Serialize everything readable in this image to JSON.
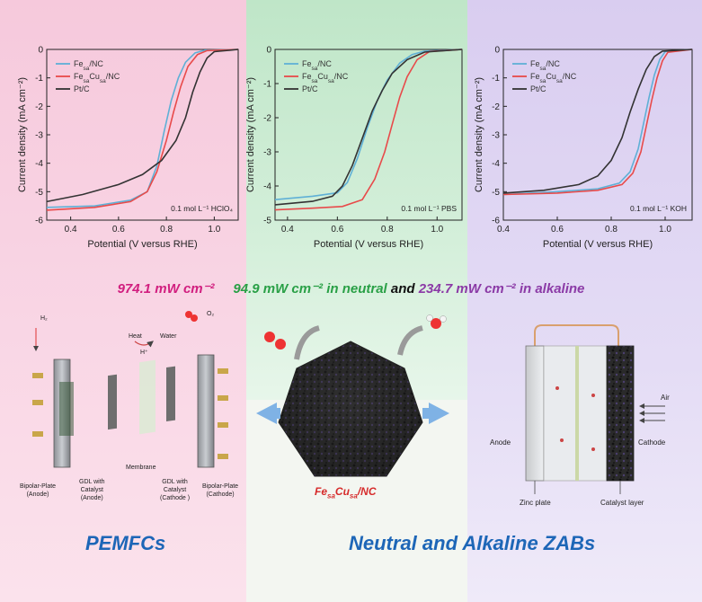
{
  "chart_data": [
    {
      "type": "line",
      "xlabel": "Potential (V versus RHE)",
      "ylabel": "Current density (mA cm⁻²)",
      "annotation": "0.1 mol L⁻¹ HClO₄",
      "xlim": [
        0.3,
        1.1
      ],
      "ylim": [
        -6,
        0
      ],
      "xticks": [
        "0.4",
        "0.6",
        "0.8",
        "1.0"
      ],
      "yticks": [
        "0",
        "-1",
        "-2",
        "-3",
        "-4",
        "-5",
        "-6"
      ],
      "legend_position": "top-left",
      "series": [
        {
          "name": "Fe_sa/NC",
          "color": "#5fb0d6",
          "x": [
            0.3,
            0.5,
            0.65,
            0.72,
            0.76,
            0.79,
            0.82,
            0.85,
            0.88,
            0.92,
            0.96,
            1.1
          ],
          "y": [
            -5.55,
            -5.5,
            -5.3,
            -5.0,
            -4.1,
            -2.9,
            -1.8,
            -1.0,
            -0.45,
            -0.12,
            -0.03,
            0
          ]
        },
        {
          "name": "Fe_sa Cu_sa/NC",
          "color": "#e84a4a",
          "x": [
            0.3,
            0.5,
            0.65,
            0.72,
            0.76,
            0.8,
            0.83,
            0.86,
            0.89,
            0.93,
            0.97,
            1.1
          ],
          "y": [
            -5.65,
            -5.55,
            -5.35,
            -5.0,
            -4.3,
            -3.2,
            -2.2,
            -1.3,
            -0.6,
            -0.18,
            -0.04,
            0
          ]
        },
        {
          "name": "Pt/C",
          "color": "#333333",
          "x": [
            0.3,
            0.45,
            0.6,
            0.7,
            0.78,
            0.84,
            0.88,
            0.91,
            0.94,
            0.97,
            1.0,
            1.1
          ],
          "y": [
            -5.35,
            -5.1,
            -4.75,
            -4.4,
            -3.9,
            -3.2,
            -2.4,
            -1.5,
            -0.8,
            -0.3,
            -0.08,
            0
          ]
        }
      ]
    },
    {
      "type": "line",
      "xlabel": "Potential (V versus RHE)",
      "ylabel": "Current density (mA cm⁻²)",
      "annotation": "0.1 mol L⁻¹ PBS",
      "xlim": [
        0.35,
        1.1
      ],
      "ylim": [
        -5,
        0
      ],
      "xticks": [
        "0.4",
        "0.6",
        "0.8",
        "1.0"
      ],
      "yticks": [
        "0",
        "-1",
        "-2",
        "-3",
        "-4",
        "-5"
      ],
      "legend_position": "top-left",
      "series": [
        {
          "name": "Fe_sa/NC",
          "color": "#5fb0d6",
          "x": [
            0.35,
            0.5,
            0.6,
            0.64,
            0.68,
            0.72,
            0.76,
            0.8,
            0.85,
            0.9,
            0.95,
            1.1
          ],
          "y": [
            -4.4,
            -4.3,
            -4.2,
            -3.9,
            -3.2,
            -2.3,
            -1.5,
            -0.9,
            -0.4,
            -0.15,
            -0.05,
            0
          ]
        },
        {
          "name": "Fe_sa Cu_sa/NC",
          "color": "#e84a4a",
          "x": [
            0.35,
            0.5,
            0.62,
            0.7,
            0.75,
            0.79,
            0.82,
            0.85,
            0.88,
            0.92,
            0.97,
            1.1
          ],
          "y": [
            -4.7,
            -4.65,
            -4.6,
            -4.4,
            -3.8,
            -3.0,
            -2.2,
            -1.4,
            -0.8,
            -0.3,
            -0.06,
            0
          ]
        },
        {
          "name": "Pt/C",
          "color": "#333333",
          "x": [
            0.35,
            0.5,
            0.58,
            0.62,
            0.66,
            0.7,
            0.74,
            0.78,
            0.82,
            0.88,
            0.95,
            1.1
          ],
          "y": [
            -4.55,
            -4.45,
            -4.3,
            -4.0,
            -3.4,
            -2.6,
            -1.8,
            -1.2,
            -0.7,
            -0.3,
            -0.08,
            0
          ]
        }
      ]
    },
    {
      "type": "line",
      "xlabel": "Potential (V versus RHE)",
      "ylabel": "Current density (mA cm⁻²)",
      "annotation": "0.1 mol L⁻¹ KOH",
      "xlim": [
        0.4,
        1.1
      ],
      "ylim": [
        -6,
        0
      ],
      "xticks": [
        "0.4",
        "0.6",
        "0.8",
        "1.0"
      ],
      "yticks": [
        "0",
        "-1",
        "-2",
        "-3",
        "-4",
        "-5",
        "-6"
      ],
      "legend_position": "top-left",
      "series": [
        {
          "name": "Fe_sa/NC",
          "color": "#5fb0d6",
          "x": [
            0.4,
            0.6,
            0.75,
            0.83,
            0.87,
            0.9,
            0.92,
            0.94,
            0.96,
            0.98,
            1.0,
            1.1
          ],
          "y": [
            -5.1,
            -5.0,
            -4.9,
            -4.7,
            -4.3,
            -3.5,
            -2.6,
            -1.7,
            -0.9,
            -0.35,
            -0.08,
            0
          ]
        },
        {
          "name": "Fe_sa Cu_sa/NC",
          "color": "#e84a4a",
          "x": [
            0.4,
            0.6,
            0.75,
            0.84,
            0.88,
            0.91,
            0.93,
            0.95,
            0.97,
            0.99,
            1.01,
            1.1
          ],
          "y": [
            -5.1,
            -5.05,
            -4.95,
            -4.75,
            -4.35,
            -3.6,
            -2.7,
            -1.8,
            -1.0,
            -0.4,
            -0.1,
            0
          ]
        },
        {
          "name": "Pt/C",
          "color": "#333333",
          "x": [
            0.4,
            0.55,
            0.68,
            0.75,
            0.8,
            0.84,
            0.87,
            0.9,
            0.93,
            0.96,
            0.99,
            1.1
          ],
          "y": [
            -5.05,
            -4.95,
            -4.75,
            -4.45,
            -3.9,
            -3.1,
            -2.2,
            -1.4,
            -0.7,
            -0.25,
            -0.06,
            0
          ]
        }
      ]
    }
  ],
  "summary": {
    "acidic": "974.1 mW cm⁻²",
    "neutral": "94.9 mW cm⁻² in neutral",
    "joiner": "and",
    "alkaline": "234.7 mW cm⁻² in alkaline"
  },
  "colors": {
    "acidic": "#d11f7f",
    "neutral": "#29a046",
    "alkaline": "#8b3aa6",
    "joiner": "#111111",
    "arrows": "#7fb2e5",
    "headline": "#1d66b7"
  },
  "pemfc": {
    "title": "PEMFCs",
    "h2": "H₂",
    "o2": "O₂",
    "heat": "Heat",
    "water": "Water",
    "membrane": "Membrane",
    "bipolar_anode": "Bipolar-Plate\n(Anode)",
    "gdl_anode": "GDL with\nCatalyst\n(Anode)",
    "gdl_cathode": "GDL with\nCatalyst\n(Cathode )",
    "bipolar_cathode": "Bipolar-Plate\n(Cathode)",
    "proton": "H⁺"
  },
  "catalyst_label": "Fe_sa Cu_sa/NC",
  "zab": {
    "title": "Neutral and Alkaline ZABs",
    "anode": "Anode",
    "cathode": "Cathode",
    "air": "Air",
    "zinc_plate": "Zinc plate",
    "catalyst_layer": "Catalyst layer"
  }
}
